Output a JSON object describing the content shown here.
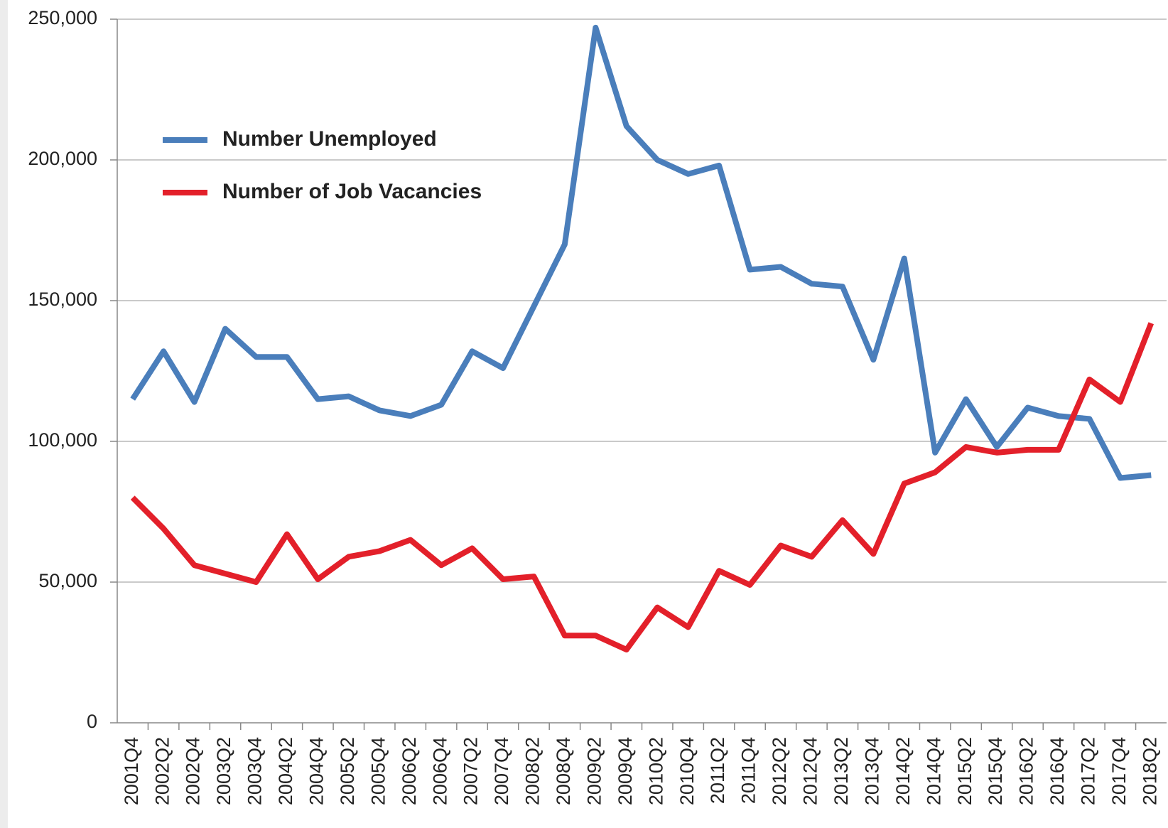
{
  "chart_data": {
    "type": "line",
    "categories": [
      "2001Q4",
      "2002Q2",
      "2002Q4",
      "2003Q2",
      "2003Q4",
      "2004Q2",
      "2004Q4",
      "2005Q2",
      "2005Q4",
      "2006Q2",
      "2006Q4",
      "2007Q2",
      "2007Q4",
      "2008Q2",
      "2008Q4",
      "2009Q2",
      "2009Q4",
      "2010Q2",
      "2010Q4",
      "2011Q2",
      "2011Q4",
      "2012Q2",
      "2012Q4",
      "2013Q2",
      "2013Q4",
      "2014Q2",
      "2014Q4",
      "2015Q2",
      "2015Q4",
      "2016Q2",
      "2016Q4",
      "2017Q2",
      "2017Q4",
      "2018Q2"
    ],
    "series": [
      {
        "name": "Number Unemployed",
        "color": "#4a7ebb",
        "values": [
          115000,
          132000,
          114000,
          140000,
          130000,
          130000,
          115000,
          116000,
          111000,
          109000,
          113000,
          132000,
          126000,
          148000,
          170000,
          247000,
          212000,
          200000,
          195000,
          198000,
          161000,
          162000,
          156000,
          155000,
          129000,
          165000,
          96000,
          115000,
          98000,
          112000,
          109000,
          108000,
          87000,
          88000
        ]
      },
      {
        "name": "Number of Job Vacancies",
        "color": "#e3202a",
        "values": [
          80000,
          69000,
          56000,
          53000,
          50000,
          67000,
          51000,
          59000,
          61000,
          65000,
          56000,
          62000,
          51000,
          52000,
          31000,
          31000,
          26000,
          41000,
          34000,
          54000,
          49000,
          63000,
          59000,
          72000,
          60000,
          85000,
          89000,
          98000,
          96000,
          97000,
          97000,
          122000,
          114000,
          142000
        ]
      }
    ],
    "ylim": [
      0,
      250000
    ],
    "yticks": [
      0,
      {
        "value": 50000,
        "label": "50,000"
      },
      {
        "value": 100000,
        "label": "100,000"
      },
      {
        "value": 150000,
        "label": "150,000"
      },
      {
        "value": 200000,
        "label": "200,000"
      },
      {
        "value": 250000,
        "label": "250,000"
      }
    ],
    "grid": true,
    "legend": "upper left"
  }
}
